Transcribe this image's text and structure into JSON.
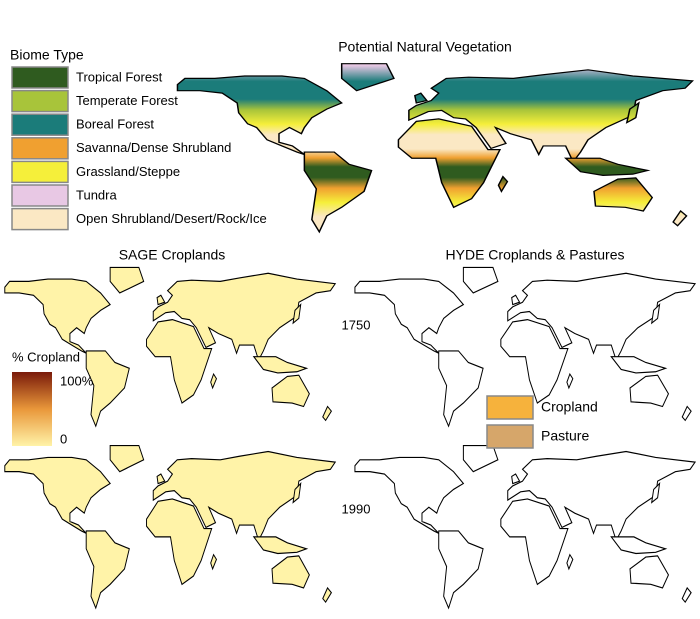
{
  "top_panel": {
    "title": "Potential Natural Vegetation",
    "legend_title": "Biome Type",
    "legend": [
      {
        "label": "Tropical Forest",
        "color": "#2f5b1f"
      },
      {
        "label": "Temperate Forest",
        "color": "#a8c43a"
      },
      {
        "label": "Boreal Forest",
        "color": "#1b7c7a"
      },
      {
        "label": "Savanna/Dense Shrubland",
        "color": "#f0a030"
      },
      {
        "label": "Grassland/Steppe",
        "color": "#f5ef3a"
      },
      {
        "label": "Tundra",
        "color": "#e8c8e4"
      },
      {
        "label": "Open Shrubland/Desert/Rock/Ice",
        "color": "#fbe8c4"
      }
    ]
  },
  "sage": {
    "title": "SAGE Croplands",
    "colorbar_title": "% Cropland",
    "colorbar_max": "100%",
    "colorbar_min": "0",
    "colors": [
      "#fff3a8",
      "#e9973a",
      "#7a1a0a"
    ]
  },
  "hyde": {
    "title": "HYDE Croplands & Pastures",
    "legend": [
      {
        "label": "Cropland",
        "color": "#f6b23c"
      },
      {
        "label": "Pasture",
        "color": "#d6a66a"
      }
    ]
  },
  "years": [
    "1750",
    "1990"
  ]
}
